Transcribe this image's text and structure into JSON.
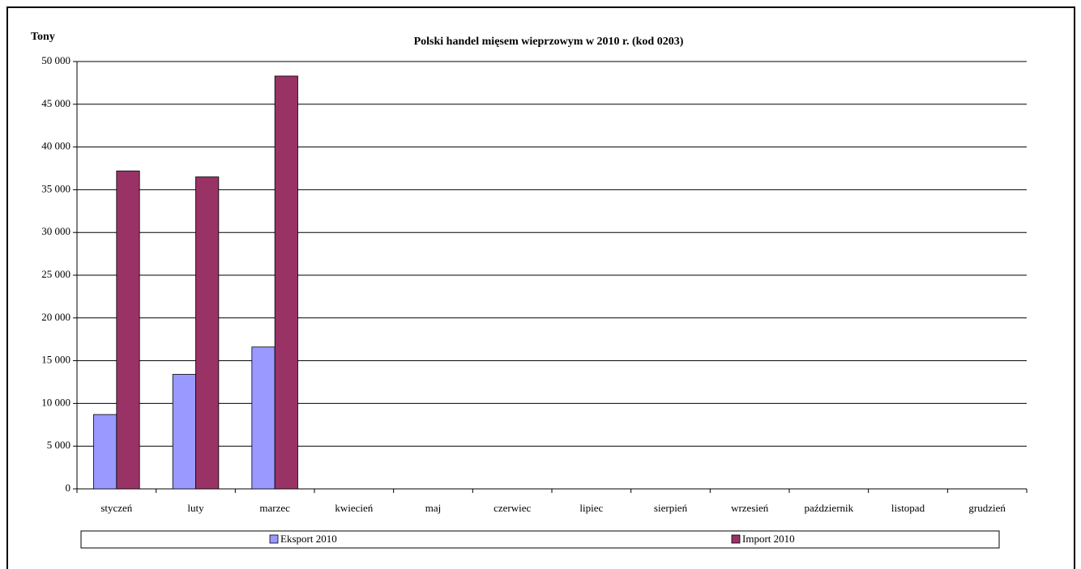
{
  "chart_data": {
    "type": "bar",
    "title": "Polski handel mięsem wieprzowym w 2010 r. (kod 0203)",
    "y_label": "Tony",
    "categories": [
      "styczeń",
      "luty",
      "marzec",
      "kwiecień",
      "maj",
      "czerwiec",
      "lipiec",
      "sierpień",
      "wrzesień",
      "październik",
      "listopad",
      "grudzień"
    ],
    "series": [
      {
        "name": "Eksport 2010",
        "color": "#9999ff",
        "values": [
          8700,
          13400,
          16600,
          null,
          null,
          null,
          null,
          null,
          null,
          null,
          null,
          null
        ]
      },
      {
        "name": "Import 2010",
        "color": "#993366",
        "values": [
          37200,
          36500,
          48300,
          null,
          null,
          null,
          null,
          null,
          null,
          null,
          null,
          null
        ]
      }
    ],
    "ylim": [
      0,
      50000
    ],
    "yticks": [
      0,
      {
        "value": 5000,
        "label": "5 000"
      },
      {
        "value": 10000,
        "label": "10 000"
      },
      {
        "value": 15000,
        "label": "15 000"
      },
      {
        "value": 20000,
        "label": "20 000"
      },
      {
        "value": 25000,
        "label": "25 000"
      },
      {
        "value": 30000,
        "label": "30 000"
      },
      {
        "value": 35000,
        "label": "35 000"
      },
      {
        "value": 40000,
        "label": "40 000"
      },
      {
        "value": 45000,
        "label": "45 000"
      },
      {
        "value": 50000,
        "label": "50 000"
      }
    ],
    "grid": true,
    "legend": "bottom"
  }
}
